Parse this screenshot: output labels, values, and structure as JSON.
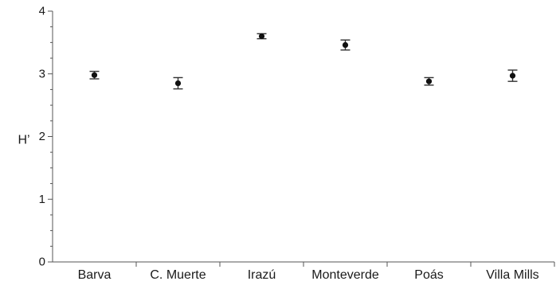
{
  "chart_data": {
    "type": "scatter",
    "title": "",
    "xlabel": "",
    "ylabel": "H’",
    "ylim": [
      0,
      4
    ],
    "y_ticks": [
      "0",
      "1",
      "2",
      "3",
      "4"
    ],
    "y_minor_step": 0.25,
    "grid": false,
    "legend": "none",
    "categories": [
      "Barva",
      "C. Muerte",
      "Irazú",
      "Monteverde",
      "Poás",
      "Villa Mills"
    ],
    "series": [
      {
        "values": [
          2.98,
          2.85,
          3.6,
          3.46,
          2.88,
          2.97
        ],
        "error": [
          0.06,
          0.09,
          0.04,
          0.08,
          0.06,
          0.09
        ]
      }
    ],
    "colors": {
      "point": "#111111",
      "axis": "#555555",
      "text": "#1a1a1a"
    }
  }
}
